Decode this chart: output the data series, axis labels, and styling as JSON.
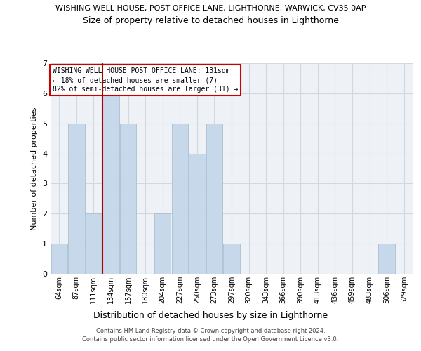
{
  "title_line1": "WISHING WELL HOUSE, POST OFFICE LANE, LIGHTHORNE, WARWICK, CV35 0AP",
  "title_line2": "Size of property relative to detached houses in Lighthorne",
  "xlabel": "Distribution of detached houses by size in Lighthorne",
  "ylabel": "Number of detached properties",
  "bar_color": "#c8d8eb",
  "bar_edge_color": "#aabfcf",
  "vline_color": "#aa0000",
  "annotation_box_text": "WISHING WELL HOUSE POST OFFICE LANE: 131sqm\n← 18% of detached houses are smaller (7)\n82% of semi-detached houses are larger (31) →",
  "categories": [
    "64sqm",
    "87sqm",
    "111sqm",
    "134sqm",
    "157sqm",
    "180sqm",
    "204sqm",
    "227sqm",
    "250sqm",
    "273sqm",
    "297sqm",
    "320sqm",
    "343sqm",
    "366sqm",
    "390sqm",
    "413sqm",
    "436sqm",
    "459sqm",
    "483sqm",
    "506sqm",
    "529sqm"
  ],
  "values": [
    1,
    5,
    2,
    6,
    5,
    0,
    2,
    5,
    4,
    5,
    1,
    0,
    0,
    0,
    0,
    0,
    0,
    0,
    0,
    1,
    0
  ],
  "vline_pos": 2.5,
  "ylim": [
    0,
    7
  ],
  "yticks": [
    0,
    1,
    2,
    3,
    4,
    5,
    6,
    7
  ],
  "grid_color": "#d0d8e0",
  "background_color": "#eef2f7",
  "footer_line1": "Contains HM Land Registry data © Crown copyright and database right 2024.",
  "footer_line2": "Contains public sector information licensed under the Open Government Licence v3.0."
}
